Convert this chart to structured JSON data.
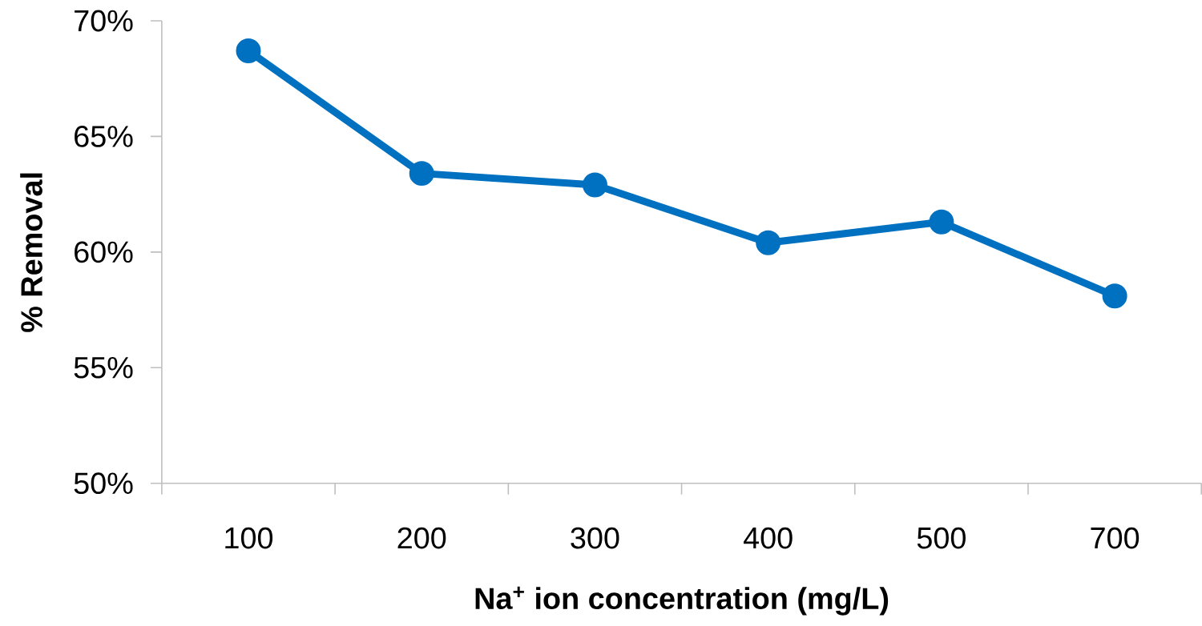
{
  "chart_data": {
    "type": "line",
    "xlabel": "Na$^{+}$ ion concentration (mg/L)",
    "ylabel": "% Removal",
    "categories": [
      "100",
      "200",
      "300",
      "400",
      "500",
      "700"
    ],
    "series": [
      {
        "color": "#0070c0",
        "values": [
          68.7,
          63.4,
          62.9,
          60.4,
          61.3,
          58.1
        ]
      }
    ],
    "marker": "circle",
    "line_style": "solid",
    "ylim": [
      50,
      70
    ],
    "yticks": [
      {
        "value": 50,
        "label": "50%"
      },
      {
        "value": 55,
        "label": "55%"
      },
      {
        "value": 60,
        "label": "60%"
      },
      {
        "value": 65,
        "label": "65%"
      },
      {
        "value": 70,
        "label": "70%"
      }
    ]
  }
}
